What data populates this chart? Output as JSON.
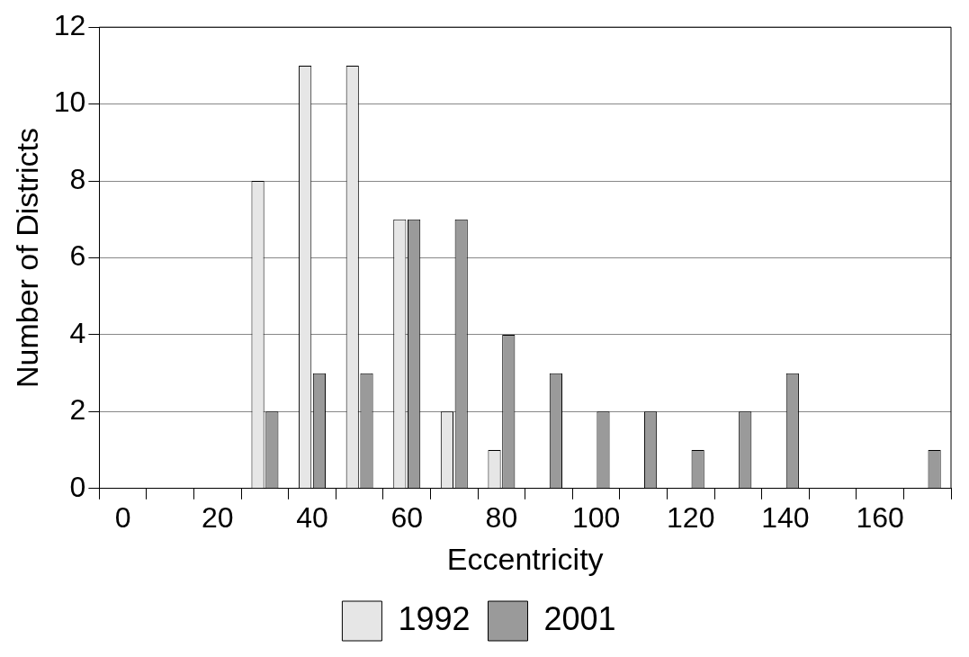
{
  "chart_data": {
    "type": "bar",
    "xlabel": "Eccentricity",
    "ylabel": "Number of Districts",
    "categories": [
      "0",
      null,
      "20",
      null,
      "40",
      null,
      "60",
      null,
      "80",
      null,
      "100",
      null,
      "120",
      null,
      "140",
      null,
      "160",
      null
    ],
    "series": [
      {
        "name": "1992",
        "color": "#e6e6e6",
        "values": [
          0,
          0,
          0,
          8,
          11,
          11,
          7,
          2,
          1,
          0,
          0,
          0,
          0,
          0,
          0,
          0,
          0,
          0
        ]
      },
      {
        "name": "2001",
        "color": "#9a9a9a",
        "values": [
          0,
          0,
          0,
          2,
          3,
          3,
          7,
          7,
          4,
          3,
          2,
          2,
          1,
          2,
          3,
          0,
          0,
          1
        ]
      }
    ],
    "ylim": [
      0,
      12
    ],
    "yticks": [
      0,
      2,
      4,
      6,
      8,
      10,
      12
    ],
    "grid": "y",
    "legend": "bottom"
  }
}
